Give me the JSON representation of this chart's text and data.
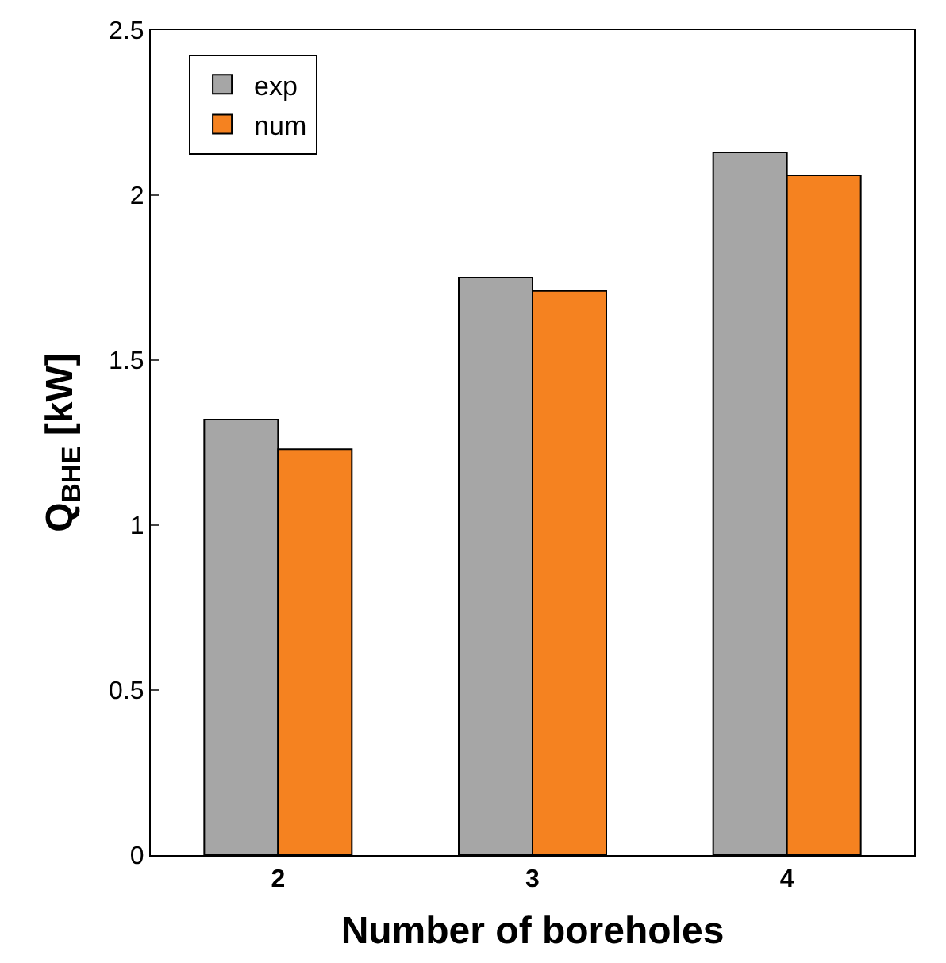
{
  "chart_data": {
    "type": "bar",
    "xlabel": "Number of boreholes",
    "ylabel": "Q$_{BHE}$ [kW]",
    "categories": [
      "2",
      "3",
      "4"
    ],
    "series": [
      {
        "name": "exp",
        "color": "#a6a6a6",
        "values": [
          1.32,
          1.75,
          2.13
        ]
      },
      {
        "name": "num",
        "color": "#f58220",
        "values": [
          1.23,
          1.71,
          2.06
        ]
      }
    ],
    "ylim": [
      0,
      2.5
    ],
    "yticks": [
      0,
      0.5,
      1,
      1.5,
      2,
      2.5
    ],
    "legend": "top left"
  }
}
